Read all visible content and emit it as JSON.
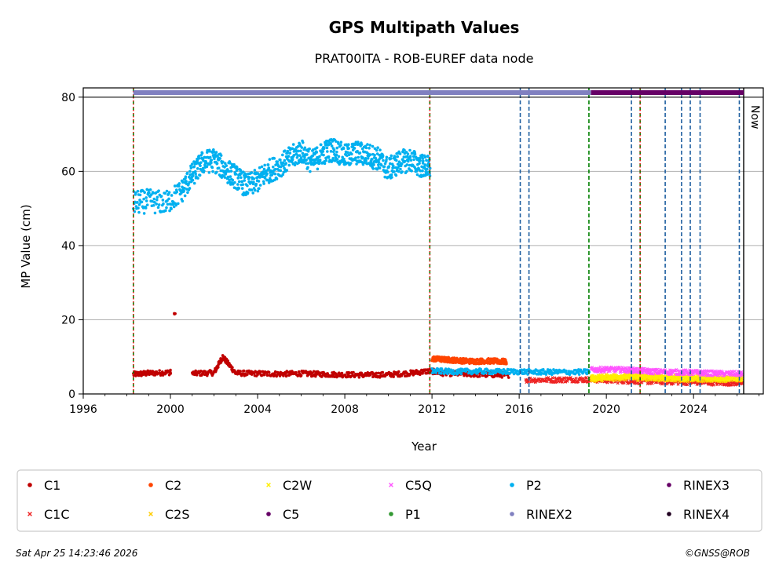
{
  "chart_data": {
    "type": "scatter",
    "title": "GPS Multipath Values",
    "subtitle": "PRAT00ITA - ROB-EUREF data node",
    "xlabel": "Year",
    "ylabel": "MP Value (cm)",
    "xlim": [
      1996,
      2027.2
    ],
    "ylim": [
      0,
      82.5
    ],
    "x_ticks": [
      1996,
      2000,
      2004,
      2008,
      2012,
      2016,
      2020,
      2024
    ],
    "y_ticks": [
      0,
      20,
      40,
      60,
      80
    ],
    "grid": "y",
    "now_label": "Now",
    "now_x": 2026.3,
    "series": [
      {
        "name": "C1",
        "color": "#c00000",
        "marker": "dot",
        "points": [
          [
            1998.3,
            5.3
          ],
          [
            1999.0,
            5.6
          ],
          [
            2000.0,
            5.8
          ],
          [
            2000.2,
            21.5
          ],
          [
            2001.0,
            5.5
          ],
          [
            2002.0,
            5.7
          ],
          [
            2002.4,
            10.0
          ],
          [
            2003.0,
            5.6
          ],
          [
            2004.0,
            5.5
          ],
          [
            2005.0,
            5.4
          ],
          [
            2006.0,
            5.5
          ],
          [
            2007.0,
            5.3
          ],
          [
            2008.0,
            5.2
          ],
          [
            2009.0,
            5.1
          ],
          [
            2010.0,
            5.2
          ],
          [
            2011.0,
            5.6
          ],
          [
            2011.9,
            6.2
          ],
          [
            2012.5,
            5.6
          ],
          [
            2013.5,
            5.4
          ],
          [
            2014.5,
            5.2
          ],
          [
            2015.5,
            5.1
          ]
        ]
      },
      {
        "name": "C1C",
        "color": "#ee2222",
        "marker": "x",
        "points": [
          [
            2016.3,
            3.8
          ],
          [
            2017.5,
            3.8
          ],
          [
            2018.5,
            3.9
          ],
          [
            2019.5,
            3.8
          ],
          [
            2020.5,
            3.6
          ],
          [
            2021.5,
            3.4
          ],
          [
            2022.5,
            3.3
          ],
          [
            2023.5,
            3.2
          ],
          [
            2024.5,
            3.1
          ],
          [
            2025.5,
            3.0
          ],
          [
            2026.2,
            3.0
          ]
        ]
      },
      {
        "name": "C2",
        "color": "#ff4400",
        "marker": "dot",
        "points": [
          [
            2012.0,
            9.5
          ],
          [
            2012.5,
            9.3
          ],
          [
            2013.0,
            9.1
          ],
          [
            2013.5,
            8.9
          ],
          [
            2014.0,
            8.8
          ],
          [
            2014.5,
            8.9
          ],
          [
            2015.0,
            8.8
          ],
          [
            2015.4,
            8.7
          ]
        ]
      },
      {
        "name": "C2S",
        "color": "#ffcc00",
        "marker": "x",
        "points": [
          [
            2019.3,
            4.0
          ],
          [
            2020.0,
            4.2
          ],
          [
            2020.8,
            4.4
          ],
          [
            2021.5,
            4.3
          ],
          [
            2022.2,
            4.2
          ],
          [
            2023.0,
            4.1
          ],
          [
            2023.8,
            4.0
          ],
          [
            2024.5,
            4.0
          ],
          [
            2025.3,
            4.0
          ],
          [
            2026.2,
            4.0
          ]
        ]
      },
      {
        "name": "C2W",
        "color": "#ffee00",
        "marker": "x",
        "points": [
          [
            2019.3,
            4.3
          ],
          [
            2020.0,
            4.6
          ],
          [
            2020.8,
            4.8
          ],
          [
            2021.5,
            4.7
          ],
          [
            2022.2,
            4.6
          ],
          [
            2023.0,
            4.5
          ],
          [
            2023.8,
            4.4
          ],
          [
            2024.5,
            4.4
          ],
          [
            2025.3,
            4.3
          ],
          [
            2026.2,
            4.3
          ]
        ]
      },
      {
        "name": "C5",
        "color": "#660066",
        "marker": "dot",
        "points": []
      },
      {
        "name": "C5Q",
        "color": "#ff55ff",
        "marker": "x",
        "points": [
          [
            2019.3,
            6.5
          ],
          [
            2020.0,
            6.6
          ],
          [
            2020.8,
            6.5
          ],
          [
            2021.5,
            6.3
          ],
          [
            2022.2,
            6.0
          ],
          [
            2023.0,
            5.9
          ],
          [
            2023.8,
            5.8
          ],
          [
            2024.5,
            5.6
          ],
          [
            2025.3,
            5.5
          ],
          [
            2026.2,
            5.4
          ]
        ]
      },
      {
        "name": "P1",
        "color": "#339933",
        "marker": "dot",
        "points": []
      },
      {
        "name": "P2",
        "color": "#00b0f0",
        "marker": "dot",
        "points": [
          [
            1998.3,
            51.5
          ],
          [
            1999.0,
            52.0
          ],
          [
            1999.8,
            51.5
          ],
          [
            2000.5,
            54.5
          ],
          [
            2001.0,
            59.0
          ],
          [
            2001.5,
            62.5
          ],
          [
            2002.0,
            63.0
          ],
          [
            2002.5,
            60.5
          ],
          [
            2003.0,
            58.5
          ],
          [
            2003.5,
            56.0
          ],
          [
            2004.0,
            57.5
          ],
          [
            2004.5,
            60.0
          ],
          [
            2005.0,
            61.5
          ],
          [
            2005.5,
            63.5
          ],
          [
            2006.0,
            65.5
          ],
          [
            2006.5,
            62.5
          ],
          [
            2007.0,
            65.0
          ],
          [
            2007.5,
            66.0
          ],
          [
            2008.0,
            64.0
          ],
          [
            2008.5,
            65.0
          ],
          [
            2009.0,
            64.5
          ],
          [
            2009.5,
            63.5
          ],
          [
            2010.0,
            60.5
          ],
          [
            2010.5,
            62.5
          ],
          [
            2011.0,
            63.0
          ],
          [
            2011.5,
            61.5
          ],
          [
            2011.9,
            61.0
          ],
          [
            2012.0,
            6.2
          ],
          [
            2013.0,
            6.0
          ],
          [
            2014.0,
            6.1
          ],
          [
            2015.0,
            6.0
          ],
          [
            2016.0,
            6.0
          ],
          [
            2017.0,
            5.9
          ],
          [
            2018.0,
            5.9
          ],
          [
            2019.2,
            5.9
          ]
        ]
      },
      {
        "name": "RINEX2",
        "color": "#8080c0",
        "marker": "dot",
        "points": []
      },
      {
        "name": "RINEX3",
        "color": "#660066",
        "marker": "dot",
        "points": []
      },
      {
        "name": "RINEX4",
        "color": "#200020",
        "marker": "dot",
        "points": []
      }
    ],
    "rinex_bars": [
      {
        "name": "RINEX2",
        "color": "#8080c0",
        "x_range": [
          1998.3,
          2019.3
        ]
      },
      {
        "name": "RINEX3",
        "color": "#660066",
        "x_range": [
          2019.3,
          2026.3
        ]
      }
    ],
    "vertical_lines": [
      {
        "x": 1998.3,
        "color": "#008000",
        "style": "dashed"
      },
      {
        "x": 1998.3,
        "color": "#ee2222",
        "style": "dotted"
      },
      {
        "x": 2011.9,
        "color": "#008000",
        "style": "dashed"
      },
      {
        "x": 2011.9,
        "color": "#ee2222",
        "style": "dotted"
      },
      {
        "x": 2016.05,
        "color": "#1f5fa0",
        "style": "dashed"
      },
      {
        "x": 2016.45,
        "color": "#1f5fa0",
        "style": "dashed"
      },
      {
        "x": 2019.2,
        "color": "#008000",
        "style": "dashed"
      },
      {
        "x": 2021.15,
        "color": "#1f5fa0",
        "style": "dashed"
      },
      {
        "x": 2021.55,
        "color": "#008000",
        "style": "dashed"
      },
      {
        "x": 2021.55,
        "color": "#ee2222",
        "style": "dotted"
      },
      {
        "x": 2022.7,
        "color": "#1f5fa0",
        "style": "dashed"
      },
      {
        "x": 2023.45,
        "color": "#1f5fa0",
        "style": "dashed"
      },
      {
        "x": 2023.85,
        "color": "#1f5fa0",
        "style": "dashed"
      },
      {
        "x": 2024.3,
        "color": "#1f5fa0",
        "style": "dashed"
      },
      {
        "x": 2026.1,
        "color": "#1f5fa0",
        "style": "dashed"
      },
      {
        "x": 2026.3,
        "color": "#000000",
        "style": "solid"
      }
    ],
    "legend": {
      "placement": "bottom",
      "entries": [
        {
          "label": "C1",
          "color": "#c00000",
          "marker": "dot"
        },
        {
          "label": "C1C",
          "color": "#ee2222",
          "marker": "x"
        },
        {
          "label": "C2",
          "color": "#ff4400",
          "marker": "dot"
        },
        {
          "label": "C2S",
          "color": "#ffcc00",
          "marker": "x"
        },
        {
          "label": "C2W",
          "color": "#ffee00",
          "marker": "x"
        },
        {
          "label": "C5",
          "color": "#660066",
          "marker": "dot"
        },
        {
          "label": "C5Q",
          "color": "#ff55ff",
          "marker": "x"
        },
        {
          "label": "P1",
          "color": "#339933",
          "marker": "dot"
        },
        {
          "label": "P2",
          "color": "#00b0f0",
          "marker": "dot"
        },
        {
          "label": "RINEX2",
          "color": "#8080c0",
          "marker": "dot"
        },
        {
          "label": "RINEX3",
          "color": "#660066",
          "marker": "dot"
        },
        {
          "label": "RINEX4",
          "color": "#200020",
          "marker": "dot"
        }
      ]
    }
  },
  "footer": {
    "timestamp": "Sat Apr 25 14:23:46 2026",
    "copyright": "©GNSS@ROB"
  }
}
